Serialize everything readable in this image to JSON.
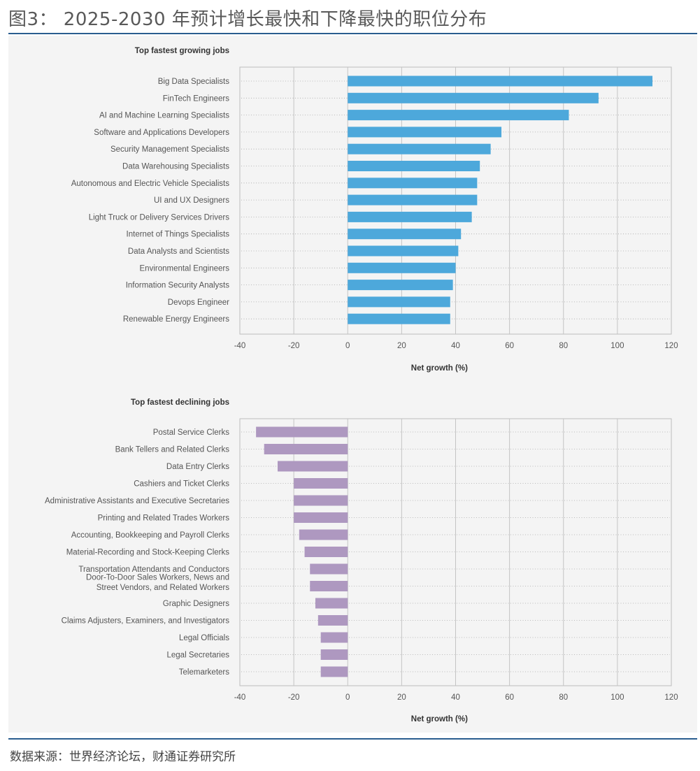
{
  "figure": {
    "title": "图3： 2025-2030 年预计增长最快和下降最快的职位分布",
    "source": "数据来源：世界经济论坛，财通证券研究所"
  },
  "colors": {
    "accent_rule": "#2a5d8f",
    "growth_bar": "#4da8db",
    "decline_bar": "#ae98c0",
    "panel_bg": "#f4f4f4"
  },
  "chart_data": [
    {
      "type": "bar",
      "orientation": "horizontal",
      "title": "Top fastest growing jobs",
      "xlabel": "Net growth (%)",
      "ylabel": "",
      "xlim": [
        -40,
        120
      ],
      "xticks": [
        -40,
        -20,
        0,
        20,
        40,
        60,
        80,
        100,
        120
      ],
      "grid": true,
      "color": "#4da8db",
      "categories": [
        "Big Data Specialists",
        "FinTech Engineers",
        "AI and Machine Learning Specialists",
        "Software and Applications Developers",
        "Security Management Specialists",
        "Data Warehousing Specialists",
        "Autonomous and Electric Vehicle Specialists",
        "UI and UX Designers",
        "Light Truck or Delivery Services Drivers",
        "Internet of Things Specialists",
        "Data Analysts and Scientists",
        "Environmental Engineers",
        "Information Security Analysts",
        "Devops Engineer",
        "Renewable Energy Engineers"
      ],
      "values": [
        113,
        93,
        82,
        57,
        53,
        49,
        48,
        48,
        46,
        42,
        41,
        40,
        39,
        38,
        38
      ]
    },
    {
      "type": "bar",
      "orientation": "horizontal",
      "title": "Top fastest declining jobs",
      "xlabel": "Net growth (%)",
      "ylabel": "",
      "xlim": [
        -40,
        120
      ],
      "xticks": [
        -40,
        -20,
        0,
        20,
        40,
        60,
        80,
        100,
        120
      ],
      "grid": true,
      "color": "#ae98c0",
      "categories": [
        "Postal Service Clerks",
        "Bank Tellers and Related Clerks",
        "Data Entry Clerks",
        "Cashiers and Ticket Clerks",
        "Administrative Assistants and Executive Secretaries",
        "Printing and Related Trades Workers",
        "Accounting, Bookkeeping and Payroll Clerks",
        "Material-Recording and Stock-Keeping Clerks",
        "Transportation Attendants and Conductors",
        "Door-To-Door Sales Workers, News and Street Vendors, and Related Workers",
        "Graphic Designers",
        "Claims Adjusters, Examiners, and Investigators",
        "Legal Officials",
        "Legal Secretaries",
        "Telemarketers"
      ],
      "category_lines": [
        null,
        null,
        null,
        null,
        null,
        null,
        null,
        null,
        null,
        [
          "Door-To-Door Sales Workers, News and",
          "Street Vendors, and Related Workers"
        ],
        null,
        null,
        null,
        null,
        null
      ],
      "values": [
        -34,
        -31,
        -26,
        -20,
        -20,
        -20,
        -18,
        -16,
        -14,
        -14,
        -12,
        -11,
        -10,
        -10,
        -10
      ]
    }
  ]
}
